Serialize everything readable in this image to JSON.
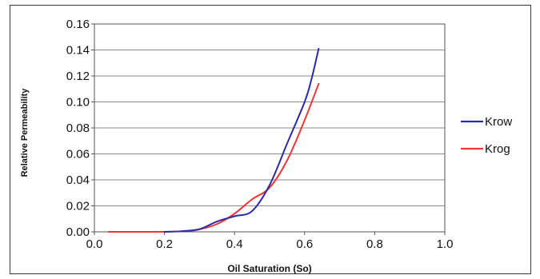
{
  "chart_data": {
    "type": "line",
    "title": "",
    "xlabel": "Oil Saturation (So)",
    "ylabel": "Relative Permeability",
    "xlim": [
      0.0,
      1.0
    ],
    "ylim": [
      0.0,
      0.16
    ],
    "x_ticks": [
      "0.0",
      "0.2",
      "0.4",
      "0.6",
      "0.8",
      "1.0"
    ],
    "y_ticks": [
      "0.00",
      "0.02",
      "0.04",
      "0.06",
      "0.08",
      "0.10",
      "0.12",
      "0.14",
      "0.16"
    ],
    "grid": "horizontal",
    "legend_position": "right",
    "series": [
      {
        "name": "Krow",
        "color": "#2b2ba8",
        "x": [
          0.2,
          0.25,
          0.3,
          0.35,
          0.4,
          0.45,
          0.5,
          0.55,
          0.6,
          0.62,
          0.64
        ],
        "y": [
          0.0,
          0.0005,
          0.002,
          0.008,
          0.012,
          0.016,
          0.036,
          0.068,
          0.1,
          0.118,
          0.141
        ]
      },
      {
        "name": "Krog",
        "color": "#f03535",
        "x": [
          0.04,
          0.1,
          0.15,
          0.2,
          0.25,
          0.3,
          0.35,
          0.4,
          0.45,
          0.5,
          0.55,
          0.6,
          0.64
        ],
        "y": [
          0.0,
          0.0,
          0.0,
          0.0,
          0.0005,
          0.002,
          0.006,
          0.014,
          0.025,
          0.034,
          0.055,
          0.086,
          0.114
        ]
      }
    ]
  }
}
